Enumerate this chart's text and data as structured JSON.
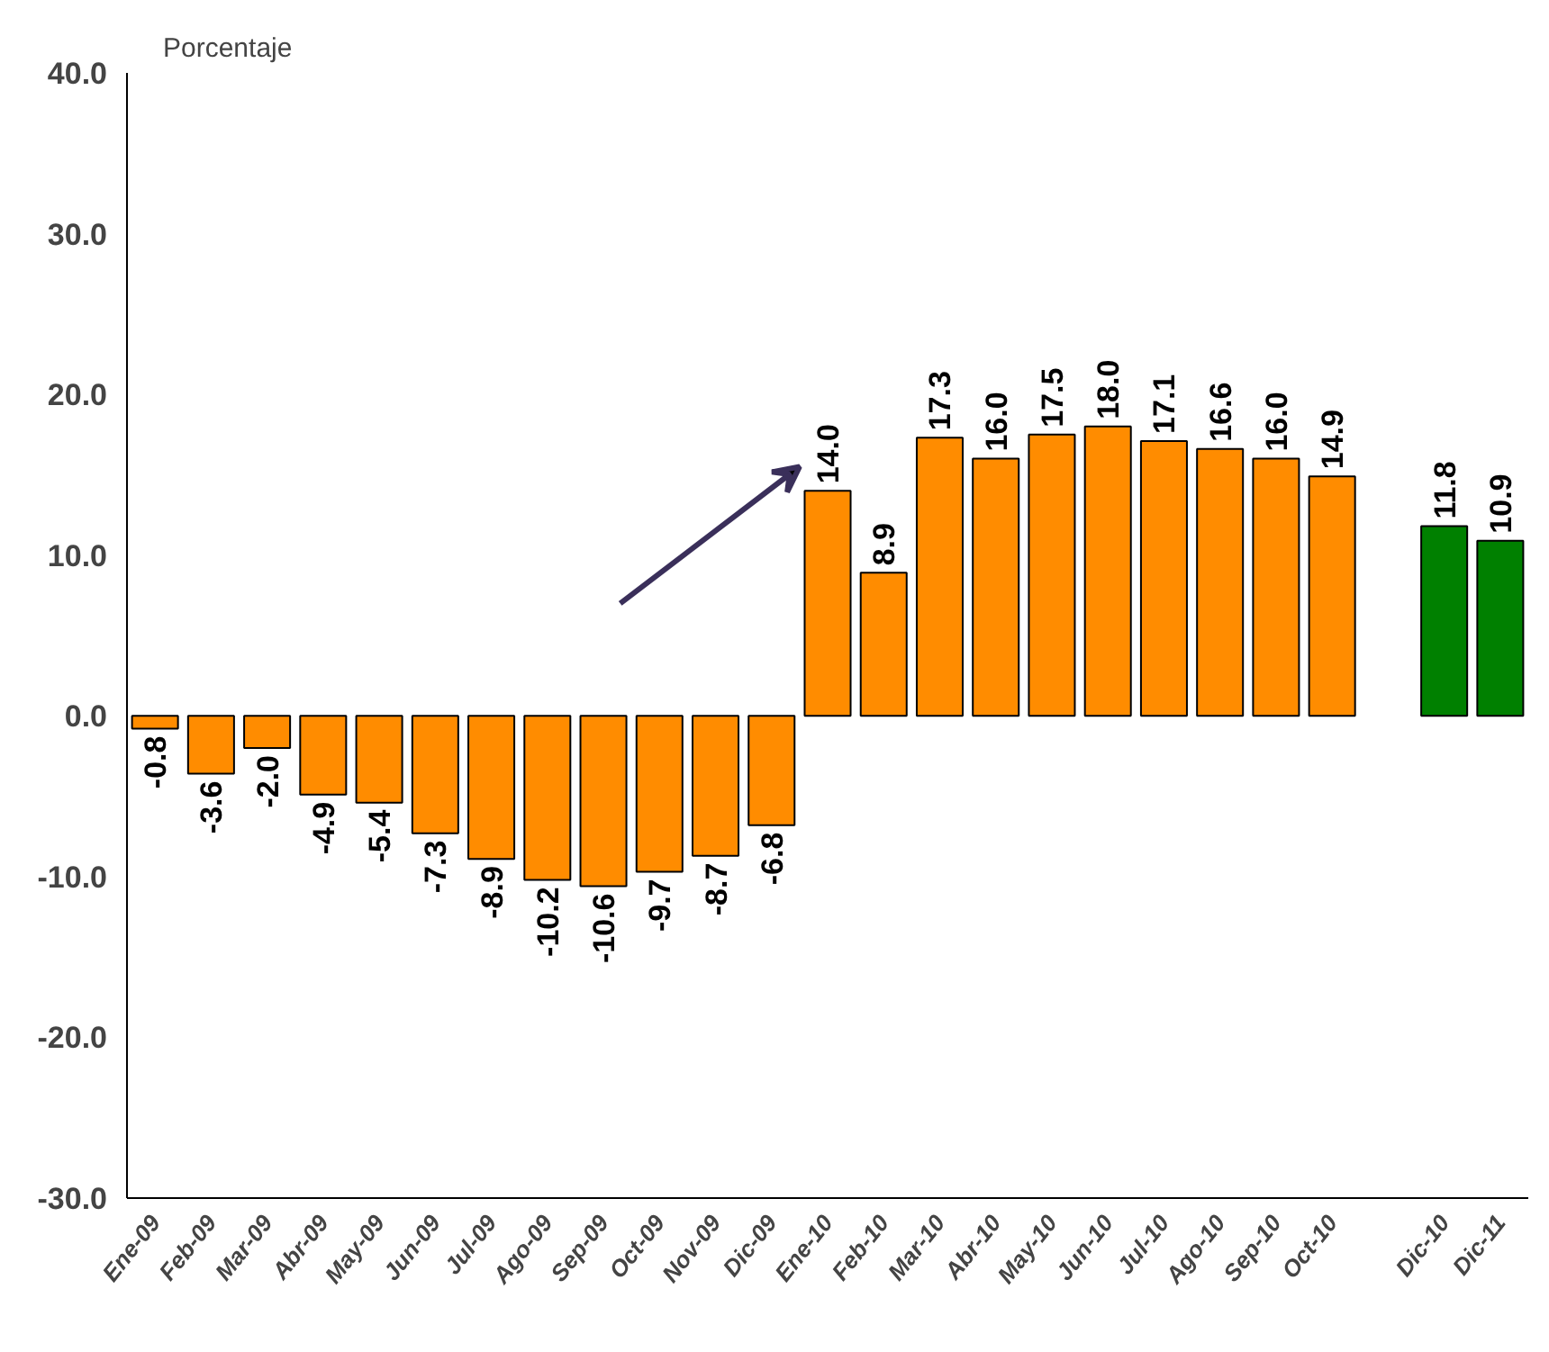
{
  "chart_data": {
    "type": "bar",
    "ylabel": "Porcentaje",
    "categories": [
      "Ene-09",
      "Feb-09",
      "Mar-09",
      "Abr-09",
      "May-09",
      "Jun-09",
      "Jul-09",
      "Ago-09",
      "Sep-09",
      "Oct-09",
      "Nov-09",
      "Dic-09",
      "Ene-10",
      "Feb-10",
      "Mar-10",
      "Abr-10",
      "May-10",
      "Jun-10",
      "Jul-10",
      "Ago-10",
      "Sep-10",
      "Oct-10",
      null,
      "Dic-10",
      "Dic-11"
    ],
    "values": [
      -0.8,
      -3.6,
      -2.0,
      -4.9,
      -5.4,
      -7.3,
      -8.9,
      -10.2,
      -10.6,
      -9.7,
      -8.7,
      -6.8,
      14.0,
      8.9,
      17.3,
      16.0,
      17.5,
      18.0,
      17.1,
      16.6,
      16.0,
      14.9,
      null,
      11.8,
      10.9
    ],
    "colors": [
      "#ff8c00",
      "#ff8c00",
      "#ff8c00",
      "#ff8c00",
      "#ff8c00",
      "#ff8c00",
      "#ff8c00",
      "#ff8c00",
      "#ff8c00",
      "#ff8c00",
      "#ff8c00",
      "#ff8c00",
      "#ff8c00",
      "#ff8c00",
      "#ff8c00",
      "#ff8c00",
      "#ff8c00",
      "#ff8c00",
      "#ff8c00",
      "#ff8c00",
      "#ff8c00",
      "#ff8c00",
      null,
      "#008000",
      "#008000"
    ],
    "ylim": [
      -30,
      40
    ],
    "yticks": [
      {
        "value": -30,
        "label": "-30.0"
      },
      {
        "value": -20,
        "label": "-20.0"
      },
      {
        "value": -10,
        "label": "-10.0"
      },
      {
        "value": 0,
        "label": "0.0"
      },
      {
        "value": 10,
        "label": "10.0"
      },
      {
        "value": 20,
        "label": "20.0"
      },
      {
        "value": 30,
        "label": "30.0"
      },
      {
        "value": 40,
        "label": "40.0"
      }
    ],
    "value_labels": [
      "-0.8",
      "-3.6",
      "-2.0",
      "-4.9",
      "-5.4",
      "-7.3",
      "-8.9",
      "-10.2",
      "-10.6",
      "-9.7",
      "-8.7",
      "-6.8",
      "14.0",
      "8.9",
      "17.3",
      "16.0",
      "17.5",
      "18.0",
      "17.1",
      "16.6",
      "16.0",
      "14.9",
      null,
      "11.8",
      "10.9"
    ],
    "grid": false
  }
}
